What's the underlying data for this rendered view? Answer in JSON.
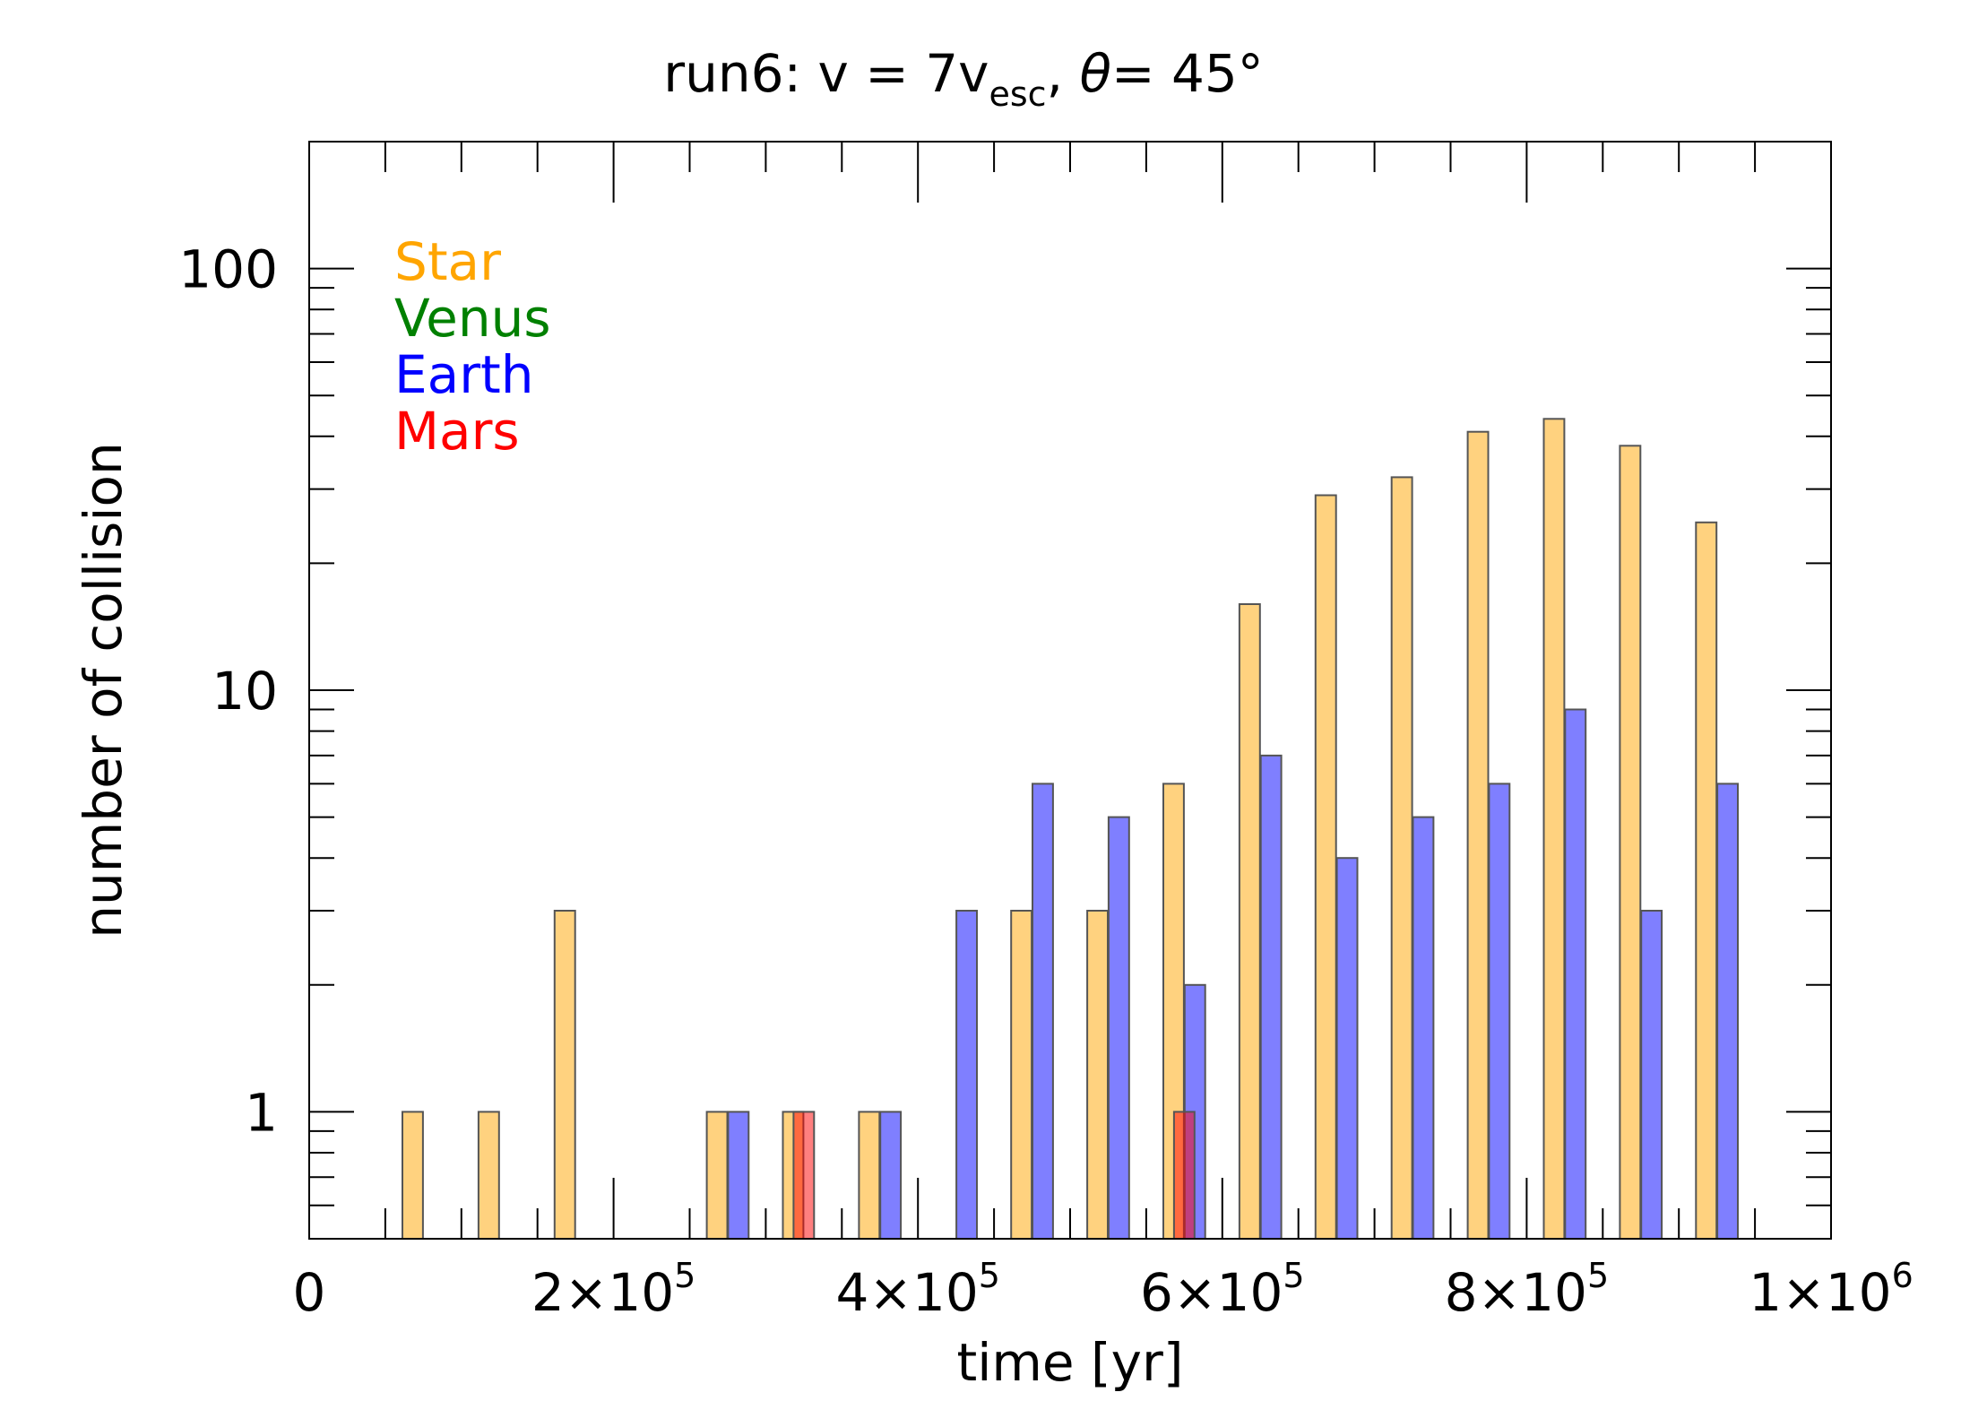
{
  "chart_data": {
    "type": "bar",
    "title": {
      "prefix": "run6: v = 7v",
      "sub": "esc",
      "mid": ", ",
      "theta": "θ",
      "suffix": "= 45°"
    },
    "xlabel": "time [yr]",
    "ylabel": "number of collision",
    "xlim": [
      0,
      1000000
    ],
    "ylim": [
      0.5,
      200
    ],
    "yscale": "log",
    "bin_width": 50000,
    "x_ticks": [
      {
        "mant": "0",
        "exp": ""
      },
      {
        "mant": "2×10",
        "exp": "5"
      },
      {
        "mant": "4×10",
        "exp": "5"
      },
      {
        "mant": "6×10",
        "exp": "5"
      },
      {
        "mant": "8×10",
        "exp": "5"
      },
      {
        "mant": "1×10",
        "exp": "6"
      }
    ],
    "y_ticks": [
      "1",
      "10",
      "100"
    ],
    "legend_position": "top-left",
    "series": [
      {
        "name": "Star",
        "color": "#FFA500",
        "x": [
          75000,
          125000,
          175000,
          275000,
          325000,
          375000,
          475000,
          525000,
          575000,
          625000,
          675000,
          725000,
          775000,
          825000,
          875000,
          925000
        ],
        "values": [
          1,
          1,
          3,
          1,
          1,
          1,
          3,
          3,
          6,
          16,
          29,
          32,
          41,
          44,
          38,
          25
        ]
      },
      {
        "name": "Venus",
        "color": "#008000",
        "x": [],
        "values": []
      },
      {
        "name": "Earth",
        "color": "#0000FF",
        "x": [
          275000,
          375000,
          425000,
          475000,
          525000,
          575000,
          625000,
          675000,
          725000,
          775000,
          825000,
          875000,
          925000
        ],
        "values": [
          1,
          1,
          3,
          6,
          5,
          2,
          7,
          4,
          5,
          6,
          9,
          3,
          6
        ]
      },
      {
        "name": "Mars",
        "color": "#FF0000",
        "x": [
          325000,
          575000
        ],
        "values": [
          1,
          1
        ]
      }
    ]
  }
}
